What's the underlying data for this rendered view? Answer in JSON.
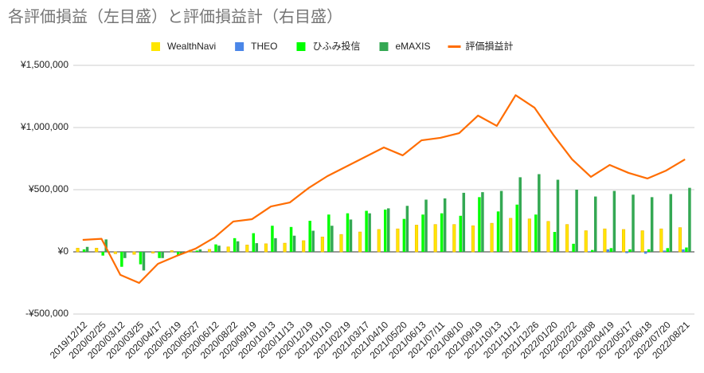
{
  "chart_data": {
    "type": "bar_line",
    "title": "各評価損益（左目盛）と評価損益計（右目盛）",
    "categories": [
      "2019/12/12",
      "2020/02/25",
      "2020/03/12",
      "2020/03/25",
      "2020/04/17",
      "2020/05/19",
      "2020/05/27",
      "2020/06/12",
      "2020/08/22",
      "2020/09/19",
      "2020/10/13",
      "2020/11/13",
      "2020/12/19",
      "2021/01/10",
      "2021/02/19",
      "2021/03/17",
      "2021/04/10",
      "2021/05/20",
      "2021/06/13",
      "2021/07/11",
      "2021/08/10",
      "2021/09/19",
      "2021/10/13",
      "2021/11/12",
      "2021/12/26",
      "2022/01/20",
      "2022/02/22",
      "2022/03/08",
      "2022/04/19",
      "2022/05/17",
      "2022/06/18",
      "2022/07/20",
      "2022/08/21"
    ],
    "series": [
      {
        "name": "WealthNavi",
        "kind": "bar",
        "color": "#ffe600",
        "values": [
          30000,
          30000,
          -15000,
          -20000,
          -10000,
          10000,
          15000,
          20000,
          40000,
          55000,
          65000,
          70000,
          90000,
          120000,
          140000,
          160000,
          180000,
          185000,
          215000,
          220000,
          220000,
          210000,
          230000,
          270000,
          265000,
          245000,
          220000,
          170000,
          185000,
          180000,
          170000,
          185000,
          195000
        ]
      },
      {
        "name": "THEO",
        "kind": "bar",
        "color": "#4a86e8",
        "values": [
          0,
          0,
          0,
          0,
          0,
          0,
          0,
          0,
          0,
          0,
          0,
          0,
          0,
          0,
          0,
          0,
          0,
          0,
          0,
          0,
          0,
          0,
          0,
          0,
          0,
          0,
          0,
          5000,
          20000,
          -10000,
          -15000,
          10000,
          20000
        ]
      },
      {
        "name": "ひふみ投信",
        "kind": "bar",
        "color": "#00ff00",
        "values": [
          20000,
          -30000,
          -120000,
          -100000,
          -50000,
          -30000,
          10000,
          60000,
          110000,
          150000,
          210000,
          200000,
          250000,
          300000,
          310000,
          330000,
          340000,
          265000,
          300000,
          310000,
          290000,
          440000,
          325000,
          380000,
          300000,
          160000,
          65000,
          15000,
          30000,
          20000,
          20000,
          30000,
          35000
        ]
      },
      {
        "name": "eMAXIS",
        "kind": "bar",
        "color": "#34a853",
        "values": [
          40000,
          100000,
          -50000,
          -150000,
          -50000,
          -20000,
          20000,
          50000,
          85000,
          70000,
          110000,
          130000,
          170000,
          210000,
          260000,
          310000,
          350000,
          370000,
          420000,
          430000,
          475000,
          480000,
          490000,
          600000,
          625000,
          580000,
          500000,
          445000,
          490000,
          460000,
          440000,
          465000,
          515000
        ]
      },
      {
        "name": "評価損益計",
        "kind": "line",
        "color": "#ff6d01",
        "values": [
          96000,
          105000,
          -185000,
          -250000,
          -96000,
          -32000,
          26000,
          115000,
          244000,
          263000,
          365000,
          397000,
          513000,
          609000,
          686000,
          763000,
          840000,
          776000,
          897000,
          917000,
          955000,
          1096000,
          1013000,
          1260000,
          1160000,
          942000,
          744000,
          603000,
          699000,
          635000,
          590000,
          654000,
          744000
        ]
      }
    ],
    "ylim": [
      -500000,
      1500000
    ],
    "yticks": [
      {
        "value": -500000,
        "label": "-¥500,000"
      },
      {
        "value": 0,
        "label": "¥0"
      },
      {
        "value": 500000,
        "label": "¥500,000"
      },
      {
        "value": 1000000,
        "label": "¥1,000,000"
      },
      {
        "value": 1500000,
        "label": "¥1,500,000"
      }
    ],
    "grid": true
  }
}
